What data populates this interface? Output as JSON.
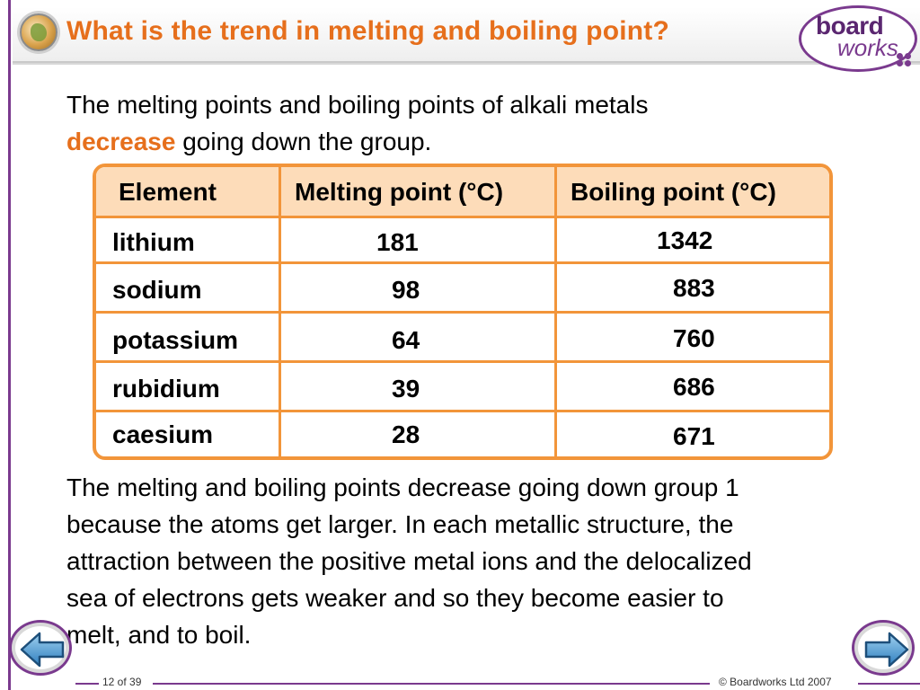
{
  "slide": {
    "title": "What is the trend in melting and boiling point?",
    "intro_line1": "The melting points and boiling points of alkali metals",
    "intro_highlight": "decrease",
    "intro_line2_rest": " going down the group.",
    "conclusion_lines": [
      "The melting and boiling points decrease going down group 1",
      "because the atoms get larger. In each metallic structure, the",
      "attraction between the positive metal ions and the delocalized",
      "sea of electrons gets weaker and so they become easier to",
      "melt, and to boil."
    ]
  },
  "brand": {
    "word1": "board",
    "word2": "works"
  },
  "table": {
    "headers": [
      "Element",
      "Melting point (°C)",
      "Boiling point (°C)"
    ],
    "rows": [
      {
        "element": "lithium",
        "melting": "181",
        "boiling": "1342"
      },
      {
        "element": "sodium",
        "melting": "98",
        "boiling": "883"
      },
      {
        "element": "potassium",
        "melting": "64",
        "boiling": "760"
      },
      {
        "element": "rubidium",
        "melting": "39",
        "boiling": "686"
      },
      {
        "element": "caesium",
        "melting": "28",
        "boiling": "671"
      }
    ]
  },
  "footer": {
    "page": "12 of 39",
    "copyright": "© Boardworks Ltd 2007"
  },
  "icons": {
    "prev": "left-arrow-icon",
    "next": "right-arrow-icon",
    "title_logo": "globe-icon"
  },
  "colors": {
    "accent": "#e66f1c",
    "table_border": "#f2953a",
    "table_header_bg": "#fddcb9",
    "brand": "#7a3a8e"
  }
}
